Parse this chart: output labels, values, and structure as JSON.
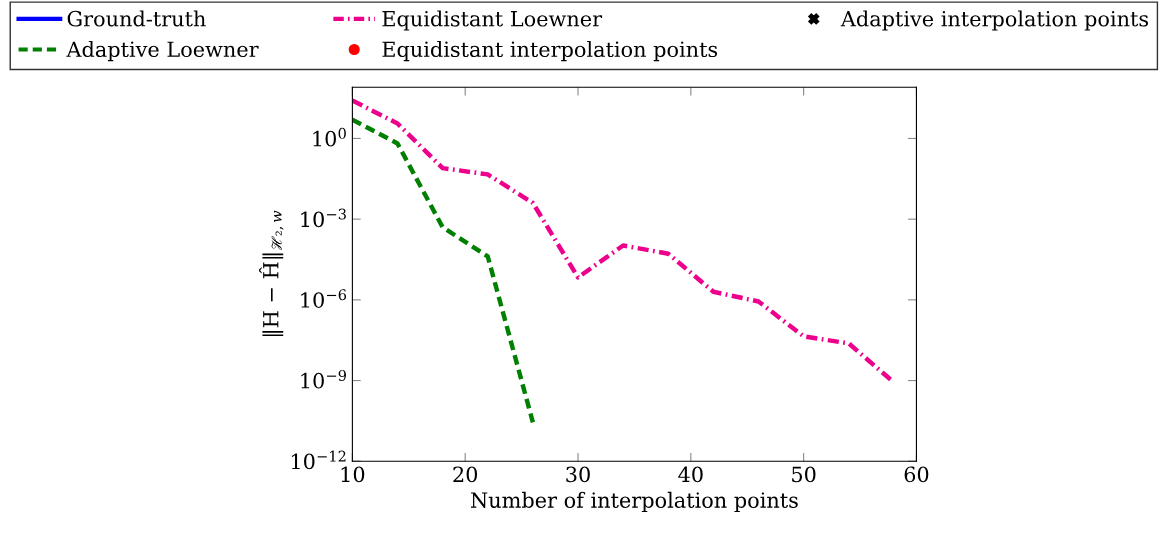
{
  "chart_data": {
    "type": "line",
    "xlabel": "Number of interpolation points",
    "ylabel": "‖H − Ĥ‖$_{ℋ₂,w}$",
    "log": "y",
    "grid": false,
    "legend": "top",
    "xlim": [
      10,
      60
    ],
    "xticks": [
      10,
      20,
      30,
      40,
      50,
      60
    ],
    "ylim": [
      1e-12,
      80
    ],
    "yticks": [
      {
        "value": 1e-12,
        "label": "10$^{−12}$"
      },
      {
        "value": 1e-09,
        "label": "10$^{−9}$"
      },
      {
        "value": 1e-06,
        "label": "10$^{−6}$"
      },
      {
        "value": 0.001,
        "label": "10$^{−3}$"
      },
      {
        "value": 1,
        "label": "10$^{0}$"
      }
    ],
    "series": [
      {
        "name": "Ground-truth",
        "color": "#0000ff",
        "type": "line",
        "line_style": "solid"
      },
      {
        "name": "Adaptive Loewner",
        "color": "#008000",
        "line_style": "dashed",
        "x": [
          10,
          14,
          18,
          22,
          26
        ],
        "values": [
          5.0,
          0.65,
          0.0005,
          4.1e-05,
          2.8e-11
        ]
      },
      {
        "name": "Equidistant Loewner",
        "color": "#ec008c",
        "line_style": "dashdot",
        "x": [
          10,
          14,
          18,
          22,
          26,
          30,
          34,
          38,
          42,
          46,
          50,
          54,
          58
        ],
        "values": [
          25.7,
          3.6,
          0.079,
          0.046,
          0.004,
          6.8e-06,
          0.000105,
          5.2e-05,
          2e-06,
          8.7e-07,
          4.4e-08,
          2.4e-08,
          8.5e-10
        ]
      },
      {
        "name": "Equidistant interpolation points",
        "color": "#ff0000",
        "type": "scatter",
        "marker": "circle"
      },
      {
        "name": "Adaptive interpolation points",
        "color": "#000000",
        "type": "scatter",
        "marker": "cross"
      }
    ]
  }
}
